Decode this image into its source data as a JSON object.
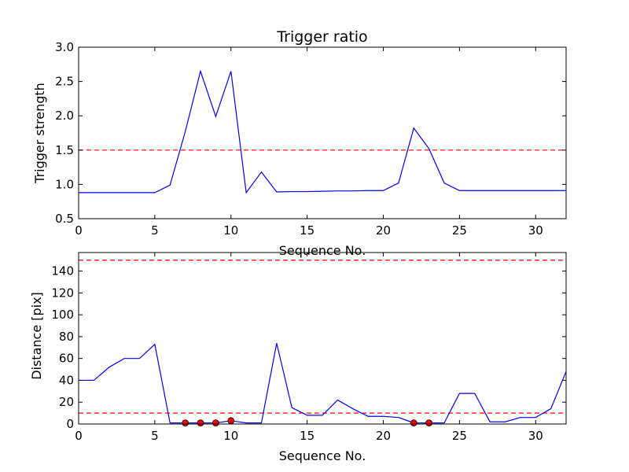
{
  "chart_data": [
    {
      "type": "line",
      "title": "Trigger ratio",
      "xlabel": "Sequence No.",
      "ylabel": "Trigger strength",
      "xlim": [
        0,
        32
      ],
      "ylim": [
        0.5,
        3.0
      ],
      "xticks": [
        0,
        5,
        10,
        15,
        20,
        25,
        30
      ],
      "yticks": [
        0.5,
        1.0,
        1.5,
        2.0,
        2.5,
        3.0
      ],
      "xtick_labels": [
        "0",
        "5",
        "10",
        "15",
        "20",
        "25",
        "30"
      ],
      "ytick_labels": [
        "0.5",
        "1.0",
        "1.5",
        "2.0",
        "2.5",
        "3.0"
      ],
      "grid": false,
      "series": [
        {
          "color": "#0000ff",
          "style": "solid",
          "x": [
            0,
            1,
            2,
            3,
            4,
            5,
            6,
            7,
            8,
            9,
            10,
            11,
            12,
            13,
            14,
            15,
            16,
            17,
            18,
            19,
            20,
            21,
            22,
            23,
            24,
            25,
            26,
            27,
            28,
            29,
            30,
            31,
            32
          ],
          "y": [
            0.88,
            0.88,
            0.88,
            0.88,
            0.88,
            0.88,
            0.99,
            1.77,
            2.65,
            1.99,
            2.65,
            0.88,
            1.18,
            0.89,
            0.895,
            0.895,
            0.9,
            0.905,
            0.905,
            0.91,
            0.91,
            1.02,
            1.82,
            1.52,
            1.02,
            0.91,
            0.91,
            0.91,
            0.91,
            0.91,
            0.91,
            0.91,
            0.91
          ]
        }
      ],
      "hlines": [
        {
          "y": 1.5,
          "color": "#ff0000",
          "style": "dashed"
        }
      ]
    },
    {
      "type": "line",
      "title": "",
      "xlabel": "Sequence No.",
      "ylabel": "Distance [pix]",
      "xlim": [
        0,
        32
      ],
      "ylim": [
        0,
        157
      ],
      "xticks": [
        0,
        5,
        10,
        15,
        20,
        25,
        30
      ],
      "yticks": [
        0,
        20,
        40,
        60,
        80,
        100,
        120,
        140
      ],
      "xtick_labels": [
        "0",
        "5",
        "10",
        "15",
        "20",
        "25",
        "30"
      ],
      "ytick_labels": [
        "0",
        "20",
        "40",
        "60",
        "80",
        "100",
        "120",
        "140"
      ],
      "grid": false,
      "series": [
        {
          "color": "#0000ff",
          "style": "solid",
          "x": [
            0,
            1,
            2,
            3,
            4,
            5,
            6,
            7,
            8,
            9,
            10,
            11,
            12,
            13,
            14,
            15,
            16,
            17,
            18,
            19,
            20,
            21,
            22,
            23,
            24,
            25,
            26,
            27,
            28,
            29,
            30,
            31,
            32
          ],
          "y": [
            40,
            40,
            52,
            60,
            60,
            73,
            1,
            1,
            1,
            1,
            3,
            1,
            1,
            74,
            15,
            8,
            8,
            22,
            14,
            7,
            7,
            6,
            1,
            1,
            1,
            28,
            28,
            2,
            2,
            6,
            6,
            14,
            48
          ]
        }
      ],
      "markers": {
        "color": "#ff0000",
        "x": [
          7,
          8,
          9,
          10,
          22,
          23
        ],
        "y": [
          1,
          1,
          1,
          3,
          1,
          1
        ]
      },
      "hlines": [
        {
          "y": 10,
          "color": "#ff0000",
          "style": "dashed"
        },
        {
          "y": 150,
          "color": "#ff0000",
          "style": "dashed"
        }
      ]
    }
  ]
}
